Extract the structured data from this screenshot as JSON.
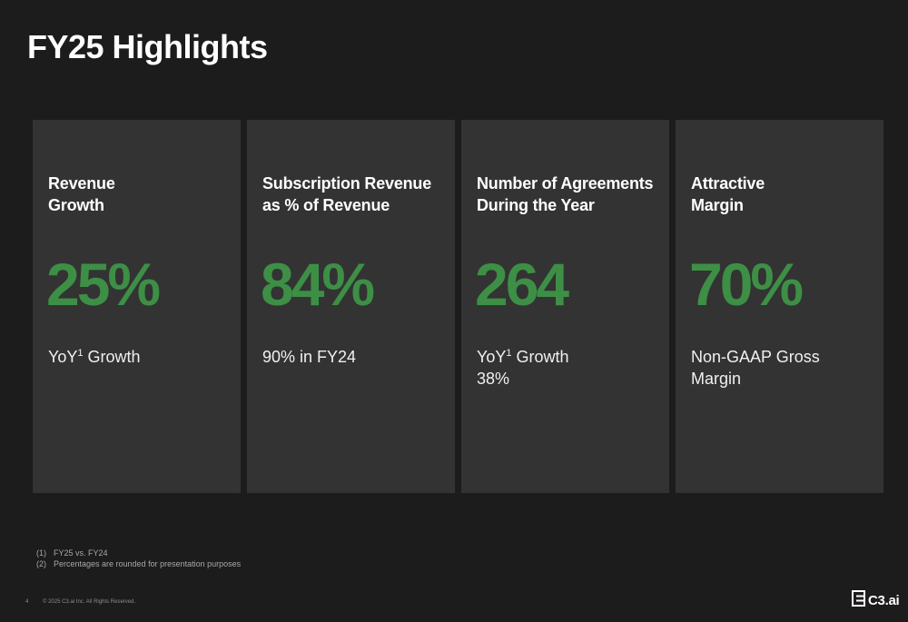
{
  "page": {
    "title": "FY25 Highlights"
  },
  "cards": [
    {
      "heading_lines": [
        "Revenue",
        "Growth"
      ],
      "metric": "25%",
      "note_lines": [
        {
          "text": "YoY",
          "sup": "1",
          "after": " Growth"
        }
      ]
    },
    {
      "heading_lines": [
        "Subscription Revenue",
        "as % of Revenue"
      ],
      "metric": "84%",
      "note_lines": [
        {
          "text": "90% in FY24"
        }
      ]
    },
    {
      "heading_lines": [
        "Number of Agreements",
        "During the Year"
      ],
      "metric": "264",
      "note_lines": [
        {
          "text": "YoY",
          "sup": "1",
          "after": " Growth"
        },
        {
          "text": "38%"
        }
      ]
    },
    {
      "heading_lines": [
        "Attractive",
        "Margin"
      ],
      "metric": "70%",
      "note_lines": [
        {
          "text": "Non-GAAP Gross"
        },
        {
          "text": "Margin"
        }
      ]
    }
  ],
  "footnotes": [
    {
      "num": "(1)",
      "text": "FY25 vs. FY24"
    },
    {
      "num": "(2)",
      "text": "Percentages are rounded for presentation purposes"
    }
  ],
  "footer": {
    "page_number": "4",
    "copyright": "© 2025 C3.ai Inc. All Rights Reserved.",
    "logo_text": "C3.ai"
  },
  "colors": {
    "background": "#1c1c1c",
    "card": "#333333",
    "metric_green": "#3d8f46"
  },
  "icons": {
    "logo": "c3-logo-icon"
  }
}
